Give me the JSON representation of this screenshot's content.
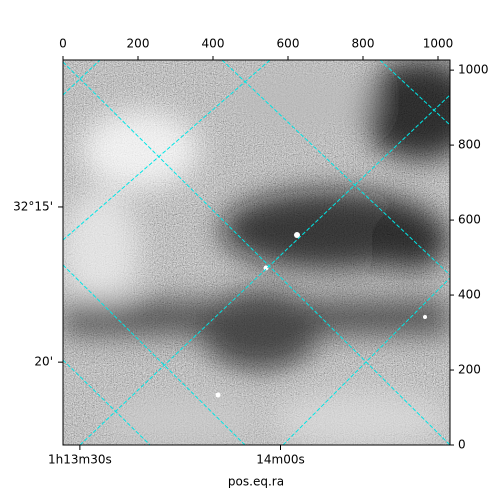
{
  "chart_data": {
    "type": "image",
    "xlabel": "pos.eq.ra",
    "xlim": [
      0,
      1032
    ],
    "ylim": [
      0,
      1027
    ],
    "xticks": [
      0,
      200,
      400,
      600,
      800,
      1000
    ],
    "yticks": [
      0,
      200,
      400,
      600,
      800,
      1000
    ],
    "ra_ticks": [
      {
        "value": 45,
        "label": "1h13m30s"
      },
      {
        "value": 580,
        "label": "14m00s"
      }
    ],
    "dec_ticks": [
      {
        "value": 635,
        "label": "32°15'"
      },
      {
        "value": 221,
        "label": "20'"
      }
    ],
    "grid": true,
    "grid_color": "#00e5e5"
  }
}
